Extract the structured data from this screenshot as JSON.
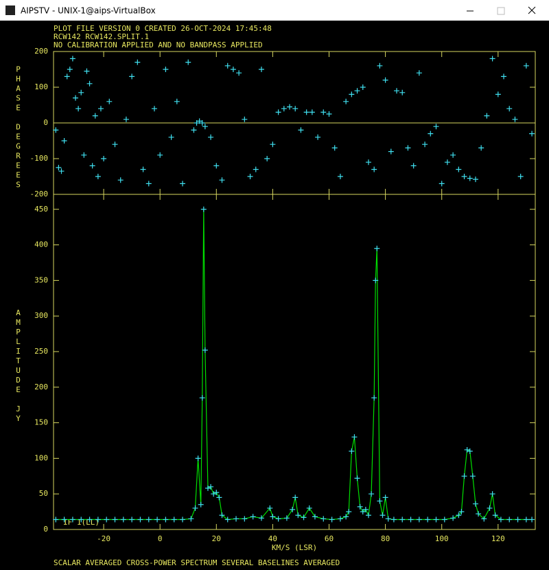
{
  "window": {
    "title": "AIPSTV - UNIX-1@aips-VirtualBox"
  },
  "header": {
    "lines": [
      "PLOT FILE VERSION 0  CREATED 26-OCT-2024 17:45:48",
      "RCW142   RCW142.SPLIT.1",
      "NO CALIBRATION APPLIED AND NO BANDPASS APPLIED"
    ]
  },
  "footer": "SCALAR AVERAGED CROSS-POWER SPECTRUM    SEVERAL BASELINES AVERAGED",
  "chart_data": [
    {
      "type": "scatter",
      "ylabel": "PHASE DEGREES",
      "color": "#40e0f0",
      "zero_line": true,
      "xlim": [
        -37.8,
        133.2
      ],
      "xticks": [
        -20,
        0,
        20,
        40,
        60,
        80,
        100,
        120
      ],
      "ylim": [
        -200,
        200
      ],
      "yticks": [
        -200,
        -100,
        0,
        100,
        200
      ],
      "x": [
        -37,
        -36,
        -35,
        -34,
        -33,
        -32,
        -31,
        -30,
        -29,
        -28,
        -27,
        -26,
        -25,
        -24,
        -23,
        -22,
        -21,
        -20,
        -18,
        -16,
        -14,
        -12,
        -10,
        -8,
        -6,
        -4,
        -2,
        0,
        2,
        4,
        6,
        8,
        10,
        12,
        13,
        14,
        15,
        16,
        18,
        20,
        22,
        24,
        26,
        28,
        30,
        32,
        34,
        36,
        38,
        40,
        42,
        44,
        46,
        48,
        50,
        52,
        54,
        56,
        58,
        60,
        62,
        64,
        66,
        68,
        70,
        72,
        74,
        76,
        78,
        80,
        82,
        84,
        86,
        88,
        90,
        92,
        94,
        96,
        98,
        100,
        102,
        104,
        106,
        108,
        110,
        112,
        114,
        116,
        118,
        120,
        122,
        124,
        126,
        128,
        130,
        132
      ],
      "values": [
        -20,
        -125,
        -135,
        -50,
        130,
        150,
        180,
        70,
        40,
        85,
        -90,
        145,
        110,
        -120,
        20,
        -150,
        40,
        -100,
        60,
        -60,
        -160,
        10,
        130,
        170,
        -130,
        -170,
        40,
        -90,
        150,
        -40,
        60,
        -170,
        170,
        -20,
        0,
        5,
        0,
        -10,
        -40,
        -120,
        -160,
        160,
        150,
        140,
        10,
        -150,
        -130,
        150,
        -100,
        -60,
        30,
        40,
        45,
        40,
        -20,
        30,
        30,
        -40,
        30,
        25,
        -70,
        -150,
        60,
        80,
        90,
        100,
        -110,
        -130,
        160,
        120,
        -80,
        90,
        85,
        -70,
        -120,
        140,
        -60,
        -30,
        -10,
        -170,
        -110,
        -90,
        -130,
        -150,
        -155,
        -158,
        -70,
        20,
        180,
        80,
        130,
        40,
        10,
        -150,
        160,
        -30
      ]
    },
    {
      "type": "line",
      "ylabel": "AMPLITUDE JY",
      "xlabel": "KM/S (LSR)",
      "annotation": "IF 1(LL)",
      "color": "#00e000",
      "marker_color": "#40e0f0",
      "xlim": [
        -37.8,
        133.2
      ],
      "xticks": [
        -20,
        0,
        20,
        40,
        60,
        80,
        100,
        120
      ],
      "ylim": [
        0,
        471
      ],
      "yticks": [
        0,
        50,
        100,
        150,
        200,
        250,
        300,
        350,
        400,
        450
      ],
      "x": [
        -37,
        -34,
        -31,
        -28,
        -25,
        -22,
        -19,
        -16,
        -13,
        -10,
        -7,
        -4,
        -1,
        2,
        5,
        8,
        11,
        12.5,
        13.5,
        14.5,
        15,
        15.5,
        16,
        17,
        18,
        19,
        20,
        21,
        22,
        24,
        27,
        30,
        33,
        36,
        39,
        40,
        42,
        45,
        47,
        48,
        49,
        51,
        53,
        55,
        58,
        61,
        64,
        66,
        67,
        68,
        69,
        70,
        71,
        72,
        73,
        74,
        75,
        76,
        76.5,
        77,
        78,
        79,
        80,
        81,
        83,
        86,
        89,
        92,
        95,
        98,
        101,
        104,
        106,
        107,
        108,
        109,
        110,
        111,
        112,
        113,
        115,
        117,
        118,
        119,
        121,
        124,
        127,
        130,
        132
      ],
      "values": [
        14,
        14,
        14,
        14,
        14,
        14,
        14,
        14,
        14,
        14,
        14,
        14,
        14,
        14,
        14,
        14,
        15,
        30,
        100,
        35,
        185,
        450,
        252,
        58,
        60,
        50,
        52,
        45,
        20,
        14,
        15,
        15,
        18,
        16,
        30,
        18,
        15,
        16,
        28,
        45,
        20,
        17,
        30,
        18,
        15,
        14,
        15,
        18,
        25,
        110,
        130,
        72,
        32,
        25,
        28,
        20,
        50,
        185,
        350,
        395,
        40,
        20,
        45,
        15,
        14,
        14,
        14,
        14,
        14,
        14,
        14,
        16,
        20,
        25,
        75,
        112,
        110,
        75,
        36,
        22,
        15,
        30,
        50,
        20,
        14,
        14,
        14,
        14,
        14
      ]
    }
  ]
}
